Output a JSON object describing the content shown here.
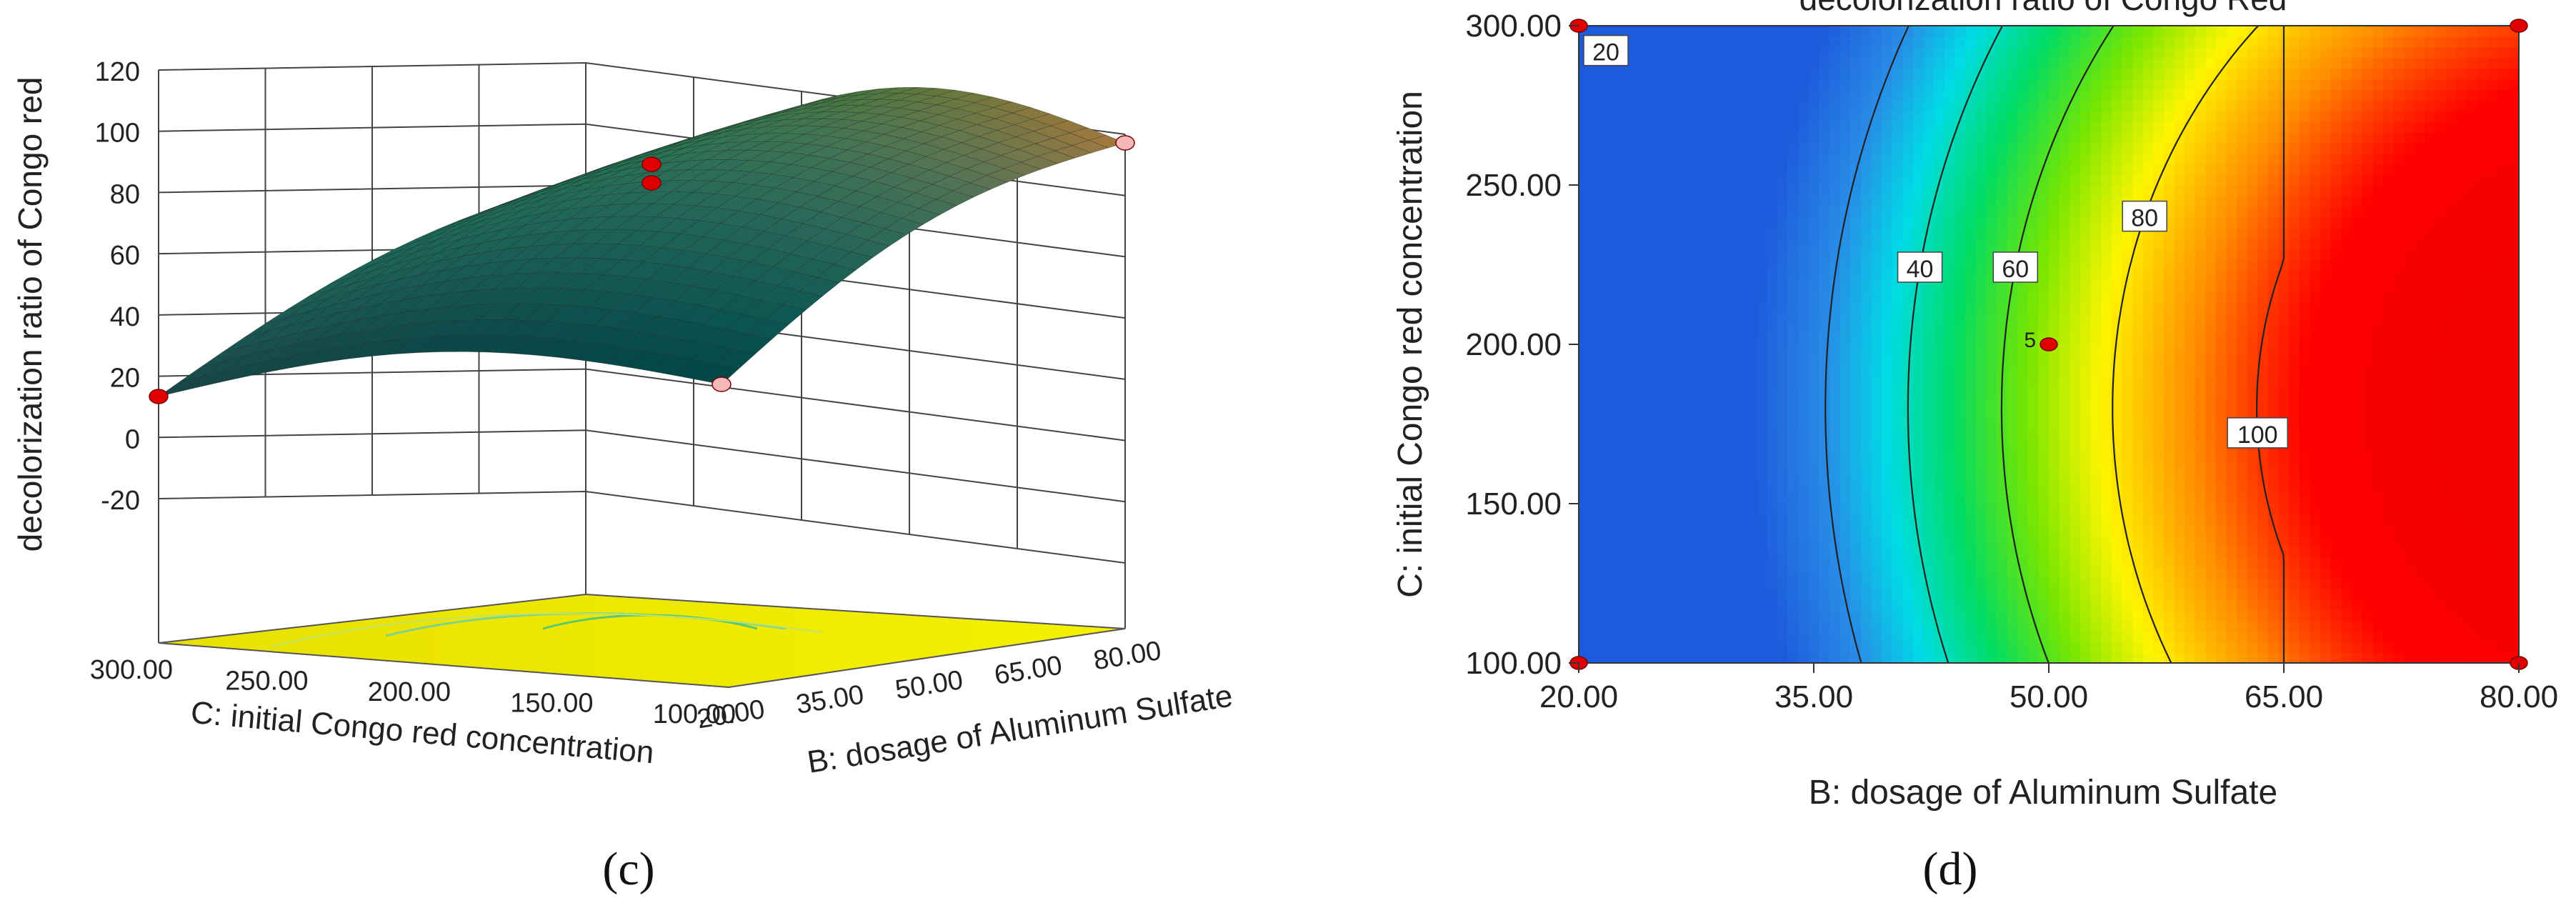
{
  "chart_data": [
    {
      "type": "surface3d",
      "panel_label": "(c)",
      "zlabel": "decolorization ratio of Congo red",
      "xlabel": "C: initial Congo red concentration",
      "ylabel": "B: dosage of Aluminum Sulfate",
      "z_ticks": [
        "120",
        "100",
        "80",
        "60",
        "40",
        "20",
        "0",
        "-20"
      ],
      "zlim": [
        -20,
        120
      ],
      "x_ticks": [
        "300.00",
        "250.00",
        "200.00",
        "150.00",
        "100.00"
      ],
      "xlim": [
        100,
        300
      ],
      "y_ticks": [
        "20.00",
        "35.00",
        "50.00",
        "65.00",
        "80.00"
      ],
      "ylim": [
        20,
        80
      ],
      "design_points": [
        {
          "B": 20,
          "C": 300,
          "value": 12
        },
        {
          "B": 50,
          "C": 200,
          "value": 87
        },
        {
          "B": 20,
          "C": 100,
          "value": 37
        },
        {
          "B": 80,
          "C": 300,
          "value": 93
        }
      ]
    },
    {
      "type": "contour",
      "panel_label": "(d)",
      "title": "decolorization ratio of Congo Red",
      "xlabel": "B: dosage of Aluminum Sulfate",
      "ylabel": "C: initial Congo red concentration",
      "x_ticks": [
        "20.00",
        "35.00",
        "50.00",
        "65.00",
        "80.00"
      ],
      "xlim": [
        20,
        80
      ],
      "y_ticks": [
        "100.00",
        "150.00",
        "200.00",
        "250.00",
        "300.00"
      ],
      "ylim": [
        100,
        300
      ],
      "contour_levels": [
        20,
        40,
        60,
        80,
        100
      ],
      "contour_labels": [
        "20",
        "40",
        "60",
        "80",
        "100"
      ],
      "center_point": {
        "B": 50,
        "C": 200,
        "replicates": "5"
      },
      "corner_points": [
        {
          "B": 20,
          "C": 100
        },
        {
          "B": 20,
          "C": 300
        },
        {
          "B": 80,
          "C": 100
        },
        {
          "B": 80,
          "C": 300
        }
      ]
    }
  ]
}
